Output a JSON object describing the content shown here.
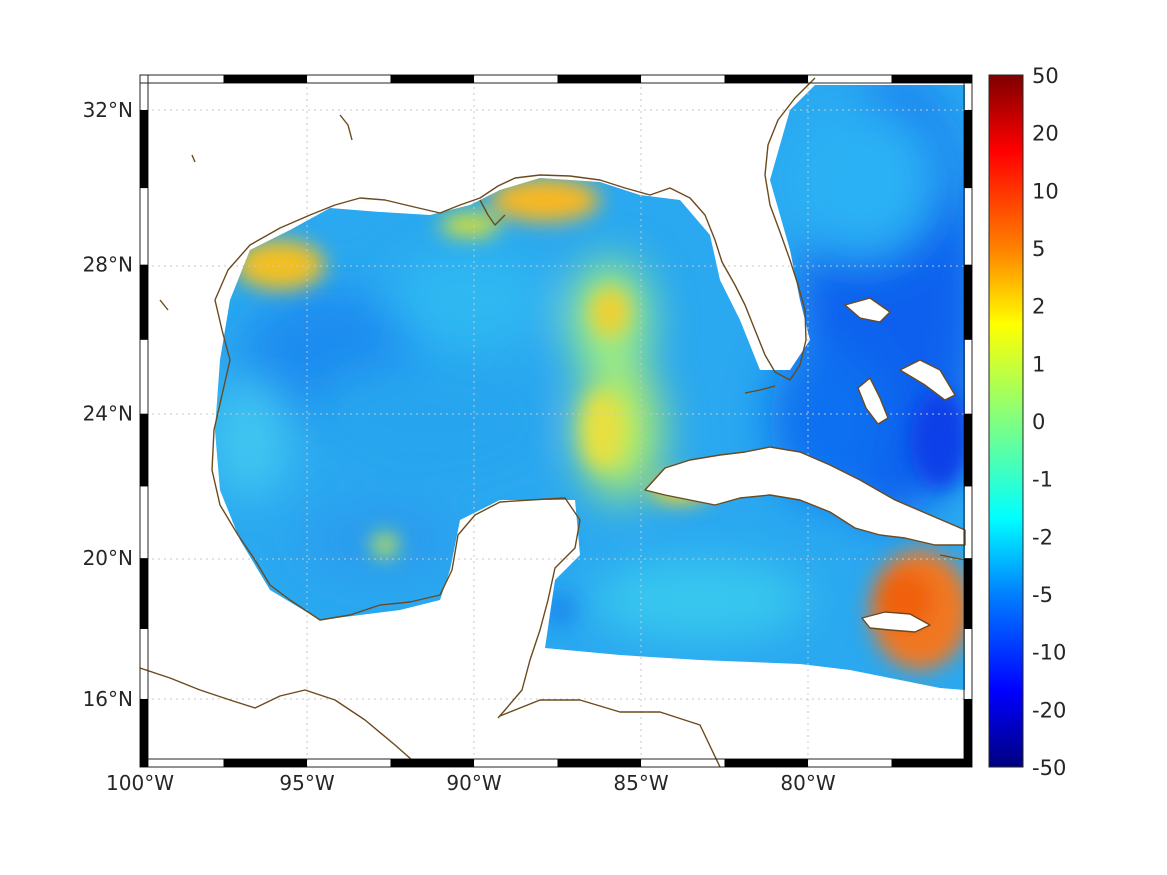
{
  "map": {
    "lon_range": [
      -100,
      -75.5
    ],
    "lat_range": [
      14.2,
      33
    ],
    "lon_ticks": [
      {
        "value": -100,
        "label": "100°W"
      },
      {
        "value": -95,
        "label": "95°W"
      },
      {
        "value": -90,
        "label": "90°W"
      },
      {
        "value": -85,
        "label": "85°W"
      },
      {
        "value": -80,
        "label": "80°W"
      }
    ],
    "lat_ticks": [
      {
        "value": 32,
        "label": "32°N"
      },
      {
        "value": 28,
        "label": "28°N"
      },
      {
        "value": 24,
        "label": "24°N"
      },
      {
        "value": 20,
        "label": "20°N"
      },
      {
        "value": 16,
        "label": "16°N"
      }
    ],
    "coastline_color": "#6b4a1e",
    "grid": true,
    "colormap": "jet"
  },
  "colorbar": {
    "labels": [
      "50",
      "20",
      "10",
      "5",
      "2",
      "1",
      "0",
      "-1",
      "-2",
      "-5",
      "-10",
      "-20",
      "-50"
    ],
    "position": "right"
  }
}
